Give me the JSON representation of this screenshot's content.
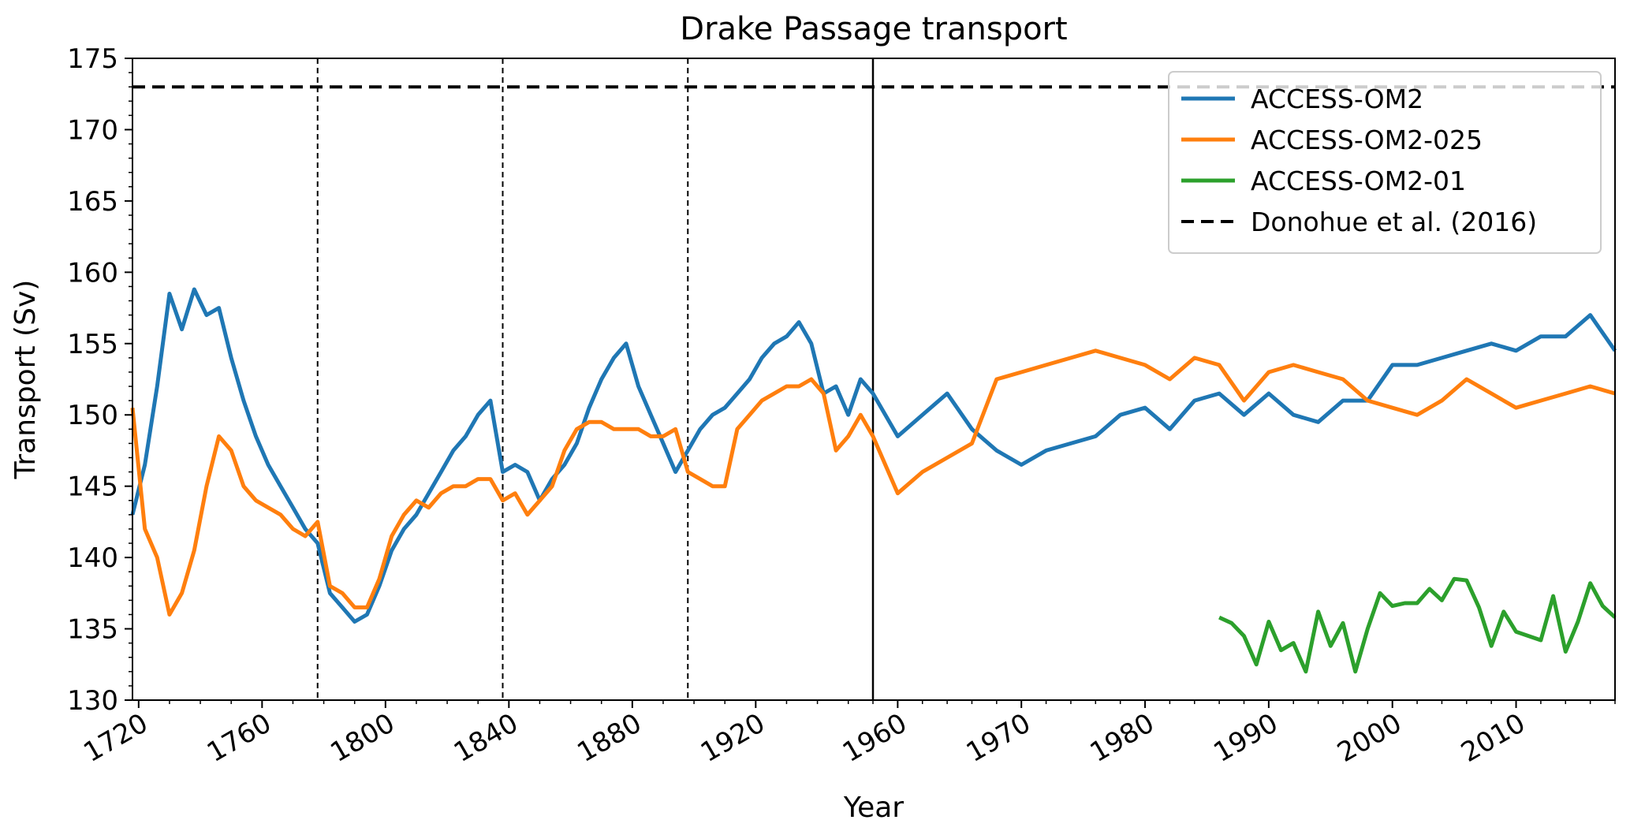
{
  "chart_data": {
    "type": "line",
    "title": "Drake Passage transport",
    "xlabel": "Year",
    "ylabel": "Transport (Sv)",
    "ylim": [
      130,
      175
    ],
    "yticks": [
      130,
      135,
      140,
      145,
      150,
      155,
      160,
      165,
      170,
      175
    ],
    "x_axis_segments": [
      {
        "range": [
          1718,
          1958
        ],
        "ticks": [
          "1720",
          "1760",
          "1800",
          "1840",
          "1880",
          "1920"
        ]
      },
      {
        "range": [
          1958,
          2018
        ],
        "ticks": [
          "1960",
          "1970",
          "1980",
          "1990",
          "2000",
          "2010"
        ]
      }
    ],
    "cycle_boundaries": [
      "1778",
      "1838",
      "1898"
    ],
    "join_year": "1958",
    "legend_position": "upper-right",
    "grid": false,
    "series": [
      {
        "name": "ACCESS-OM2",
        "color": "#1f77b4",
        "x": [
          1718,
          1722,
          1726,
          1730,
          1734,
          1738,
          1742,
          1746,
          1750,
          1754,
          1758,
          1762,
          1766,
          1770,
          1774,
          1778,
          1782,
          1786,
          1790,
          1794,
          1798,
          1802,
          1806,
          1810,
          1814,
          1818,
          1822,
          1826,
          1830,
          1834,
          1838,
          1842,
          1846,
          1850,
          1854,
          1858,
          1862,
          1866,
          1870,
          1874,
          1878,
          1882,
          1886,
          1890,
          1894,
          1898,
          1902,
          1906,
          1910,
          1914,
          1918,
          1922,
          1926,
          1930,
          1934,
          1938,
          1942,
          1946,
          1950,
          1954,
          1958,
          1960,
          1962,
          1964,
          1966,
          1968,
          1970,
          1972,
          1974,
          1976,
          1978,
          1980,
          1982,
          1984,
          1986,
          1988,
          1990,
          1992,
          1994,
          1996,
          1998,
          2000,
          2002,
          2004,
          2006,
          2008,
          2010,
          2012,
          2014,
          2016,
          2018
        ],
        "y": [
          143.0,
          146.5,
          152.0,
          158.5,
          156.0,
          158.8,
          157.0,
          157.5,
          154.0,
          151.0,
          148.5,
          146.5,
          145.0,
          143.5,
          142.0,
          141.0,
          137.5,
          136.5,
          135.5,
          136.0,
          138.0,
          140.5,
          142.0,
          143.0,
          144.5,
          146.0,
          147.5,
          148.5,
          150.0,
          151.0,
          146.0,
          146.5,
          146.0,
          144.0,
          145.5,
          146.5,
          148.0,
          150.5,
          152.5,
          154.0,
          155.0,
          152.0,
          150.0,
          148.0,
          146.0,
          147.5,
          149.0,
          150.0,
          150.5,
          151.5,
          152.5,
          154.0,
          155.0,
          155.5,
          156.5,
          155.0,
          151.5,
          152.0,
          150.0,
          152.5,
          151.5,
          148.5,
          150.0,
          151.5,
          149.0,
          147.5,
          146.5,
          147.5,
          148.0,
          148.5,
          150.0,
          150.5,
          149.0,
          151.0,
          151.5,
          150.0,
          151.5,
          150.0,
          149.5,
          151.0,
          151.0,
          153.5,
          153.5,
          154.0,
          154.5,
          155.0,
          154.5,
          155.5,
          155.5,
          157.0,
          154.5
        ]
      },
      {
        "name": "ACCESS-OM2-025",
        "color": "#ff7f0e",
        "x": [
          1718,
          1722,
          1726,
          1730,
          1734,
          1738,
          1742,
          1746,
          1750,
          1754,
          1758,
          1762,
          1766,
          1770,
          1774,
          1778,
          1782,
          1786,
          1790,
          1794,
          1798,
          1802,
          1806,
          1810,
          1814,
          1818,
          1822,
          1826,
          1830,
          1834,
          1838,
          1842,
          1846,
          1850,
          1854,
          1858,
          1862,
          1866,
          1870,
          1874,
          1878,
          1882,
          1886,
          1890,
          1894,
          1898,
          1902,
          1906,
          1910,
          1914,
          1918,
          1922,
          1926,
          1930,
          1934,
          1938,
          1942,
          1946,
          1950,
          1954,
          1958,
          1960,
          1962,
          1964,
          1966,
          1968,
          1970,
          1972,
          1974,
          1976,
          1978,
          1980,
          1982,
          1984,
          1986,
          1988,
          1990,
          1992,
          1994,
          1996,
          1998,
          2000,
          2002,
          2004,
          2006,
          2008,
          2010,
          2012,
          2014,
          2016,
          2018
        ],
        "y": [
          150.5,
          142.0,
          140.0,
          136.0,
          137.5,
          140.5,
          145.0,
          148.5,
          147.5,
          145.0,
          144.0,
          143.5,
          143.0,
          142.0,
          141.5,
          142.5,
          138.0,
          137.5,
          136.5,
          136.5,
          138.5,
          141.5,
          143.0,
          144.0,
          143.5,
          144.5,
          145.0,
          145.0,
          145.5,
          145.5,
          144.0,
          144.5,
          143.0,
          144.0,
          145.0,
          147.5,
          149.0,
          149.5,
          149.5,
          149.0,
          149.0,
          149.0,
          148.5,
          148.5,
          149.0,
          146.0,
          145.5,
          145.0,
          145.0,
          149.0,
          150.0,
          151.0,
          151.5,
          152.0,
          152.0,
          152.5,
          151.5,
          147.5,
          148.5,
          150.0,
          148.5,
          144.5,
          146.0,
          147.0,
          148.0,
          152.5,
          153.0,
          153.5,
          154.0,
          154.5,
          154.0,
          153.5,
          152.5,
          154.0,
          153.5,
          151.0,
          153.0,
          153.5,
          153.0,
          152.5,
          151.0,
          150.5,
          150.0,
          151.0,
          152.5,
          151.5,
          150.5,
          151.0,
          151.5,
          152.0,
          151.5
        ]
      },
      {
        "name": "ACCESS-OM2-01",
        "color": "#2ca02c",
        "x": [
          1986,
          1987,
          1988,
          1989,
          1990,
          1991,
          1992,
          1993,
          1994,
          1995,
          1996,
          1997,
          1998,
          1999,
          2000,
          2001,
          2002,
          2003,
          2004,
          2005,
          2006,
          2007,
          2008,
          2009,
          2010,
          2011,
          2012,
          2013,
          2014,
          2015,
          2016,
          2017,
          2018
        ],
        "y": [
          135.8,
          135.4,
          134.5,
          132.5,
          135.5,
          133.5,
          134.0,
          132.0,
          136.2,
          133.8,
          135.4,
          132.0,
          135.0,
          137.5,
          136.6,
          136.8,
          136.8,
          137.8,
          137.0,
          138.5,
          138.4,
          136.5,
          133.8,
          136.2,
          134.8,
          134.5,
          134.2,
          137.3,
          133.4,
          135.5,
          138.2,
          136.6,
          135.8
        ]
      },
      {
        "name": "Donohue et al. (2016)",
        "color": "#000000",
        "dashed": true,
        "x": [
          1718,
          2018
        ],
        "y": [
          173.0,
          173.0
        ]
      }
    ]
  }
}
